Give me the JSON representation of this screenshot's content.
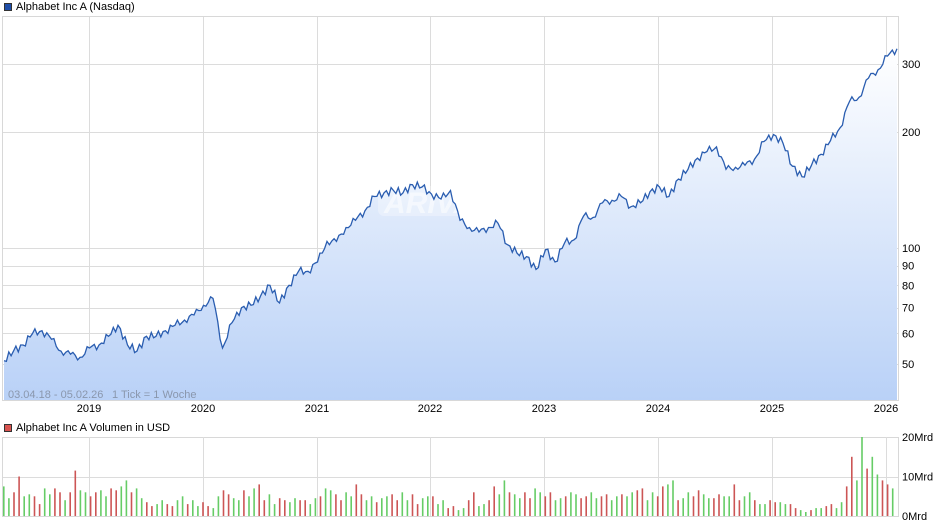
{
  "price_chart": {
    "title": "Alphabet Inc A (Nasdaq)",
    "line_color": "#2a5db0",
    "legend_color": "#1f4ea8",
    "range_label": "03.04.18 - 05.02.26",
    "tick_label": "1 Tick = 1 Woche",
    "watermark": "ARIVA.DE",
    "y_ticks": [
      "300",
      "200",
      "100",
      "90",
      "80",
      "70",
      "60",
      "50"
    ],
    "x_ticks": [
      "2019",
      "2020",
      "2021",
      "2022",
      "2023",
      "2024",
      "2025",
      "2026"
    ]
  },
  "volume_chart": {
    "title": "Alphabet Inc A Volumen in USD",
    "legend_color": "#d9534f",
    "up_color": "#66cc66",
    "down_color": "#cc5555",
    "y_ticks": [
      "20Mrd",
      "10Mrd",
      "0Mrd"
    ]
  },
  "chart_data": [
    {
      "type": "area",
      "title": "Alphabet Inc A (Nasdaq)",
      "xlabel": "",
      "ylabel": "",
      "y_scale": "log",
      "ylim": [
        42,
        340
      ],
      "grid": true,
      "legend_position": "top-left",
      "x_range": "03.04.18 - 05.02.26",
      "x_ticks": [
        "2019",
        "2020",
        "2021",
        "2022",
        "2023",
        "2024",
        "2025",
        "2026"
      ],
      "y_ticks": [
        50,
        60,
        70,
        80,
        90,
        100,
        200,
        300
      ],
      "series": [
        {
          "name": "Alphabet Inc A",
          "x": [
            "2018-04",
            "2018-05",
            "2018-06",
            "2018-07",
            "2018-08",
            "2018-09",
            "2018-10",
            "2018-11",
            "2018-12",
            "2019-01",
            "2019-02",
            "2019-03",
            "2019-04",
            "2019-05",
            "2019-06",
            "2019-07",
            "2019-08",
            "2019-09",
            "2019-10",
            "2019-11",
            "2019-12",
            "2020-01",
            "2020-02",
            "2020-03",
            "2020-04",
            "2020-05",
            "2020-06",
            "2020-07",
            "2020-08",
            "2020-09",
            "2020-10",
            "2020-11",
            "2020-12",
            "2021-01",
            "2021-02",
            "2021-03",
            "2021-04",
            "2021-05",
            "2021-06",
            "2021-07",
            "2021-08",
            "2021-09",
            "2021-10",
            "2021-11",
            "2021-12",
            "2022-01",
            "2022-02",
            "2022-03",
            "2022-04",
            "2022-05",
            "2022-06",
            "2022-07",
            "2022-08",
            "2022-09",
            "2022-10",
            "2022-11",
            "2022-12",
            "2023-01",
            "2023-02",
            "2023-03",
            "2023-04",
            "2023-05",
            "2023-06",
            "2023-07",
            "2023-08",
            "2023-09",
            "2023-10",
            "2023-11",
            "2023-12",
            "2024-01",
            "2024-02",
            "2024-03",
            "2024-04",
            "2024-05",
            "2024-06",
            "2024-07",
            "2024-08",
            "2024-09",
            "2024-10",
            "2024-11",
            "2024-12",
            "2025-01",
            "2025-02",
            "2025-03",
            "2025-04",
            "2025-05",
            "2025-06",
            "2025-07",
            "2025-08",
            "2025-09",
            "2025-10",
            "2025-11",
            "2025-12",
            "2026-01",
            "2026-02"
          ],
          "values": [
            51,
            54,
            56,
            60,
            61,
            58,
            54,
            53,
            52,
            55,
            56,
            59,
            63,
            56,
            54,
            59,
            59,
            61,
            63,
            65,
            67,
            71,
            74,
            55,
            64,
            70,
            71,
            75,
            80,
            72,
            80,
            87,
            87,
            92,
            104,
            104,
            113,
            118,
            125,
            136,
            139,
            141,
            139,
            146,
            144,
            138,
            134,
            141,
            118,
            113,
            110,
            113,
            116,
            102,
            97,
            95,
            88,
            99,
            92,
            103,
            105,
            121,
            120,
            131,
            133,
            136,
            128,
            131,
            140,
            144,
            136,
            151,
            160,
            171,
            178,
            183,
            160,
            162,
            164,
            170,
            189,
            197,
            187,
            163,
            153,
            164,
            175,
            190,
            205,
            240,
            246,
            276,
            290,
            315,
            329
          ]
        }
      ]
    },
    {
      "type": "bar",
      "title": "Alphabet Inc A Volumen in USD",
      "ylabel": "",
      "ylim": [
        0,
        20
      ],
      "y_unit": "Mrd USD",
      "y_ticks": [
        "0Mrd",
        "10Mrd",
        "20Mrd"
      ],
      "x_ticks": [
        "2019",
        "2020",
        "2021",
        "2022",
        "2023",
        "2024",
        "2025",
        "2026"
      ],
      "series": [
        {
          "name": "Volumen (weekly, approx. Mrd USD)",
          "values": [
            7.5,
            4.5,
            6,
            10,
            5,
            5.5,
            5,
            3,
            7,
            5.5,
            7,
            6,
            4,
            6,
            11.5,
            6.5,
            6,
            5,
            6,
            6.5,
            5,
            7,
            6.5,
            7.5,
            9,
            6,
            7,
            4.5,
            3.5,
            2.5,
            3,
            4,
            3,
            2.5,
            4,
            5,
            3,
            4,
            2.5,
            3.5,
            2.5,
            2,
            5,
            6.5,
            5.5,
            4.5,
            4,
            6.5,
            5,
            7,
            8,
            4,
            5.5,
            3,
            4.5,
            4,
            3.5,
            4.5,
            4,
            4,
            3,
            4.5,
            5,
            7,
            6.5,
            5.5,
            4,
            6,
            5,
            8,
            5.5,
            4,
            5,
            3.5,
            4.5,
            5,
            5.5,
            4,
            6,
            4,
            5.5,
            3,
            4.5,
            5,
            5,
            3,
            4,
            2,
            2.5,
            1.5,
            2,
            4,
            6,
            2.5,
            3,
            4,
            7.5,
            5.5,
            9,
            6,
            5.5,
            4.5,
            6,
            4.5,
            7,
            6,
            5,
            6,
            4,
            4.5,
            5,
            6,
            5.5,
            4.5,
            5,
            6,
            4.5,
            5,
            5.5,
            4,
            5,
            5.5,
            5,
            6,
            6.5,
            7,
            4,
            6,
            5,
            7.5,
            8,
            9,
            4,
            4.5,
            6,
            5,
            6.5,
            5.5,
            4.5,
            4.5,
            5.5,
            5,
            5,
            8,
            4,
            5,
            6,
            4,
            3,
            3,
            4,
            3.5,
            3.5,
            3,
            3,
            2,
            1.5,
            1,
            1.5,
            2,
            2,
            2.5,
            3,
            2,
            3.5,
            7.5,
            15,
            9,
            20,
            12,
            15,
            10.5,
            9,
            8,
            7
          ]
        }
      ]
    }
  ]
}
